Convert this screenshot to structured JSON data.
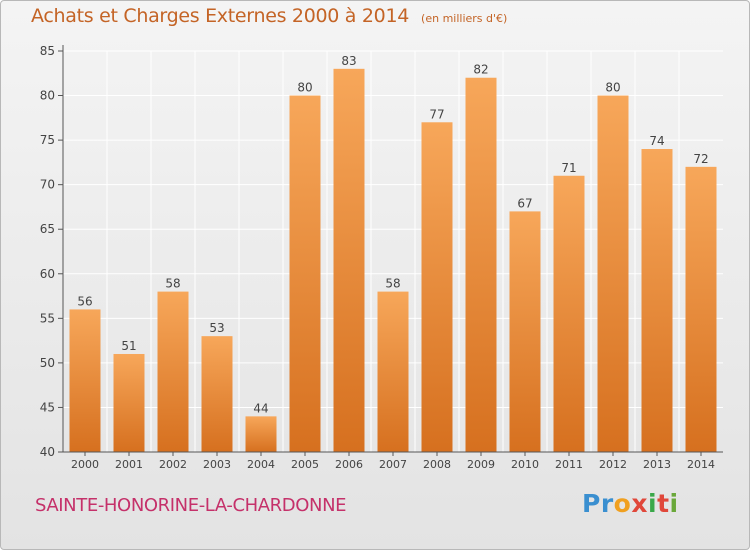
{
  "header": {
    "title": "Achats et Charges Externes 2000 à 2014",
    "subtitle": "(en milliers d'€)"
  },
  "footer": {
    "commune": "SAINTE-HONORINE-LA-CHARDONNE",
    "logo": [
      "Pr",
      "o",
      "x",
      "i",
      "t",
      "i"
    ]
  },
  "colors": {
    "bar_light": "#f7a75a",
    "bar_dark": "#d6701f",
    "axis": "#555555",
    "grid": "#ffffff",
    "title": "#c46426",
    "commune": "#c5316a"
  },
  "chart_data": {
    "type": "bar",
    "title": "Achats et Charges Externes 2000 à 2014",
    "subtitle": "(en milliers d'€)",
    "xlabel": "",
    "ylabel": "",
    "categories": [
      "2000",
      "2001",
      "2002",
      "2003",
      "2004",
      "2005",
      "2006",
      "2007",
      "2008",
      "2009",
      "2010",
      "2011",
      "2012",
      "2013",
      "2014"
    ],
    "values": [
      56,
      51,
      58,
      53,
      44,
      80,
      83,
      58,
      77,
      82,
      67,
      71,
      80,
      74,
      72
    ],
    "ylim": [
      40,
      85
    ],
    "yticks": [
      40,
      45,
      50,
      55,
      60,
      65,
      70,
      75,
      80,
      85
    ],
    "grid": true,
    "data_labels": true
  }
}
